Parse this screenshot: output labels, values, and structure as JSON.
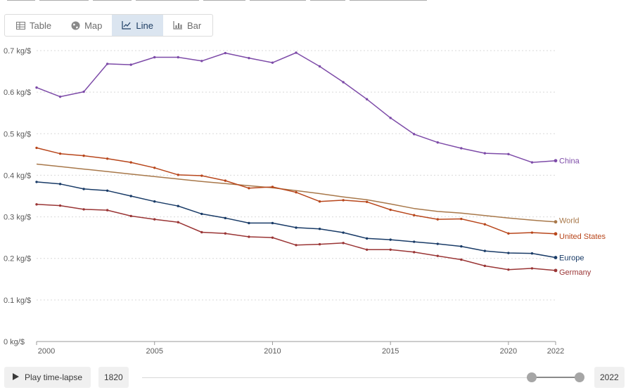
{
  "chart_data": {
    "type": "line",
    "title": "",
    "xlabel": "",
    "ylabel": "",
    "x": [
      2000,
      2001,
      2002,
      2003,
      2004,
      2005,
      2006,
      2007,
      2008,
      2009,
      2010,
      2011,
      2012,
      2013,
      2014,
      2015,
      2016,
      2017,
      2018,
      2019,
      2020,
      2021,
      2022
    ],
    "xlim": [
      2000,
      2022
    ],
    "ylim": [
      0,
      0.7
    ],
    "x_ticks": [
      2000,
      2005,
      2010,
      2015,
      2020,
      2022
    ],
    "x_tick_labels": [
      "2000",
      "2005",
      "2010",
      "2015",
      "2020",
      "2022"
    ],
    "y_ticks": [
      0,
      0.1,
      0.2,
      0.3,
      0.4,
      0.5,
      0.6,
      0.7
    ],
    "y_tick_labels": [
      "0 kg/$",
      "0.1 kg/$",
      "0.2 kg/$",
      "0.3 kg/$",
      "0.4 kg/$",
      "0.5 kg/$",
      "0.6 kg/$",
      "0.7 kg/$"
    ],
    "grid": "horizontal dotted",
    "legend": "inline-right",
    "series": [
      {
        "name": "China",
        "color": "#7d4ba8",
        "markers": true,
        "values": [
          0.611,
          0.589,
          0.601,
          0.668,
          0.666,
          0.684,
          0.684,
          0.675,
          0.694,
          0.682,
          0.671,
          0.695,
          0.662,
          0.624,
          0.583,
          0.538,
          0.499,
          0.479,
          0.465,
          0.453,
          0.451,
          0.431,
          0.435
        ]
      },
      {
        "name": "World",
        "color": "#a8784a",
        "markers": false,
        "values": [
          0.427,
          0.421,
          0.415,
          0.409,
          0.403,
          0.397,
          0.391,
          0.385,
          0.38,
          0.375,
          0.37,
          0.363,
          0.356,
          0.348,
          0.341,
          0.331,
          0.32,
          0.313,
          0.309,
          0.303,
          0.297,
          0.292,
          0.288
        ]
      },
      {
        "name": "United States",
        "color": "#b8461b",
        "markers": true,
        "values": [
          0.466,
          0.452,
          0.447,
          0.44,
          0.431,
          0.418,
          0.401,
          0.399,
          0.387,
          0.369,
          0.372,
          0.359,
          0.337,
          0.34,
          0.336,
          0.317,
          0.304,
          0.294,
          0.295,
          0.282,
          0.26,
          0.262,
          0.259
        ]
      },
      {
        "name": "Europe",
        "color": "#193b67",
        "markers": true,
        "values": [
          0.384,
          0.379,
          0.367,
          0.363,
          0.35,
          0.337,
          0.326,
          0.307,
          0.297,
          0.285,
          0.285,
          0.274,
          0.271,
          0.262,
          0.248,
          0.245,
          0.24,
          0.235,
          0.229,
          0.218,
          0.213,
          0.212,
          0.202
        ]
      },
      {
        "name": "Germany",
        "color": "#9a3535",
        "markers": true,
        "values": [
          0.33,
          0.327,
          0.318,
          0.316,
          0.302,
          0.294,
          0.287,
          0.263,
          0.26,
          0.252,
          0.25,
          0.232,
          0.234,
          0.237,
          0.221,
          0.221,
          0.215,
          0.206,
          0.197,
          0.182,
          0.173,
          0.176,
          0.171
        ]
      }
    ]
  },
  "tabs": [
    {
      "label": "Table",
      "icon": "table-icon",
      "active": false
    },
    {
      "label": "Map",
      "icon": "globe-icon",
      "active": false
    },
    {
      "label": "Line",
      "icon": "line-chart-icon",
      "active": true
    },
    {
      "label": "Bar",
      "icon": "bar-chart-icon",
      "active": false
    }
  ],
  "timeline": {
    "play_label": "Play time-lapse",
    "start_year": "1820",
    "end_year": "2022"
  }
}
